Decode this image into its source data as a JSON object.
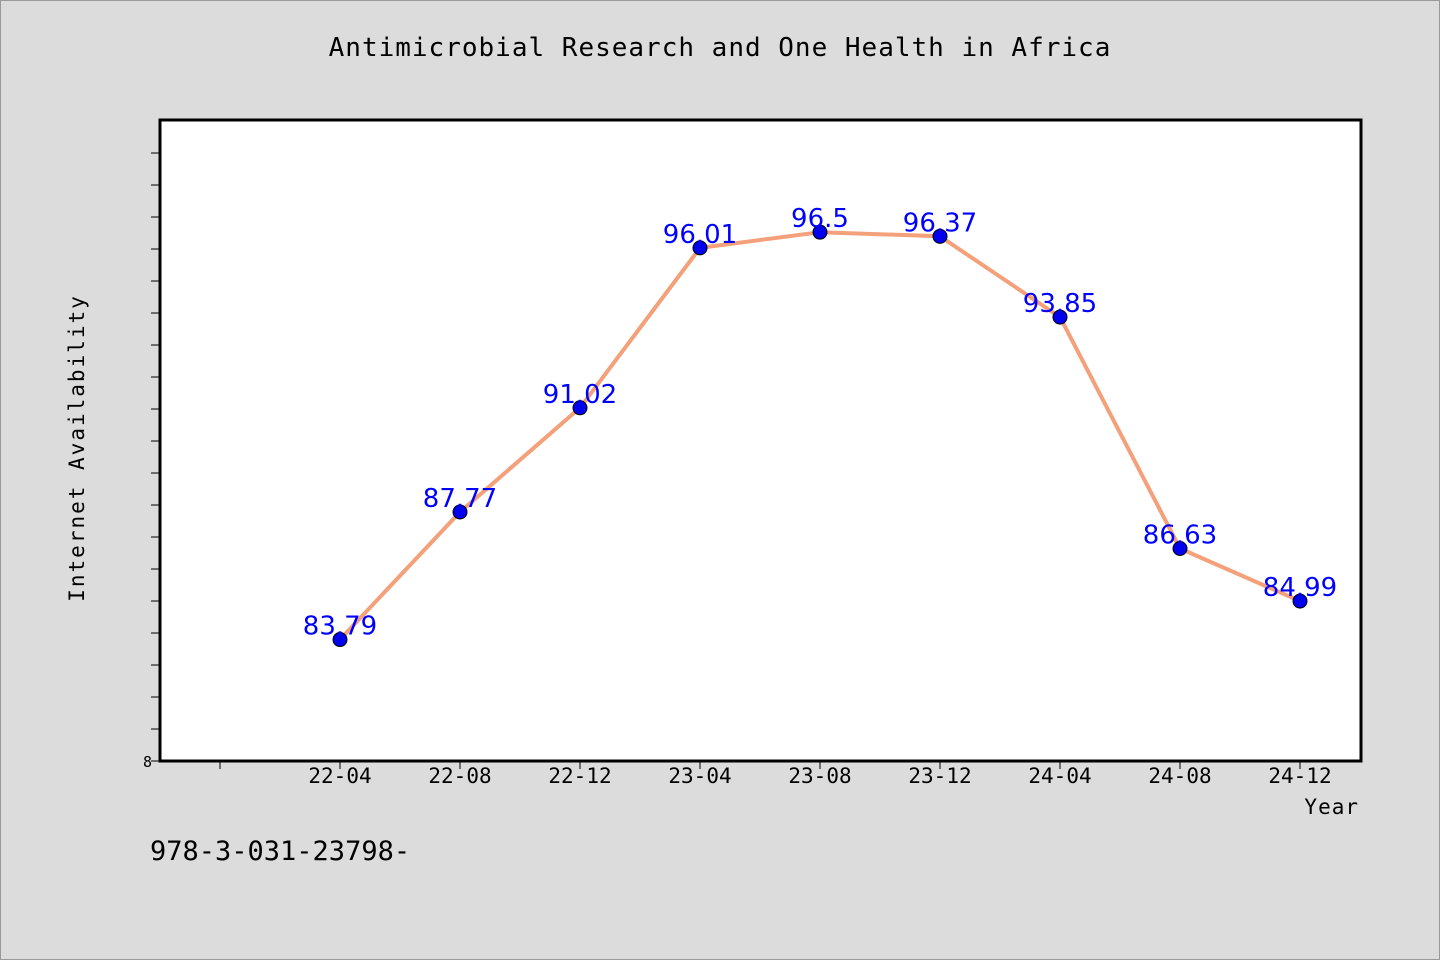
{
  "chart_data": {
    "type": "line",
    "title": "Antimicrobial Research and One Health in Africa",
    "xlabel": "Year",
    "ylabel": "Internet Availability",
    "categories": [
      "22-04",
      "22-08",
      "22-12",
      "23-04",
      "23-08",
      "23-12",
      "24-04",
      "24-08",
      "24-12"
    ],
    "series": [
      {
        "values": [
          83.79,
          87.77,
          91.02,
          96.01,
          96.5,
          96.37,
          93.85,
          86.63,
          84.99
        ],
        "labels": [
          "83.79",
          "87.77",
          "91.02",
          "96.01",
          "96.5",
          "96.37",
          "93.85",
          "86.63",
          "84.99"
        ]
      }
    ],
    "ylim": [
      80,
      100
    ],
    "y_tick_labels": [
      "8"
    ],
    "grid": false,
    "line_color": "#f4a07a",
    "marker_color": "#0000ee",
    "label_color": "#0000ff"
  },
  "footnote": "978-3-031-23798-"
}
